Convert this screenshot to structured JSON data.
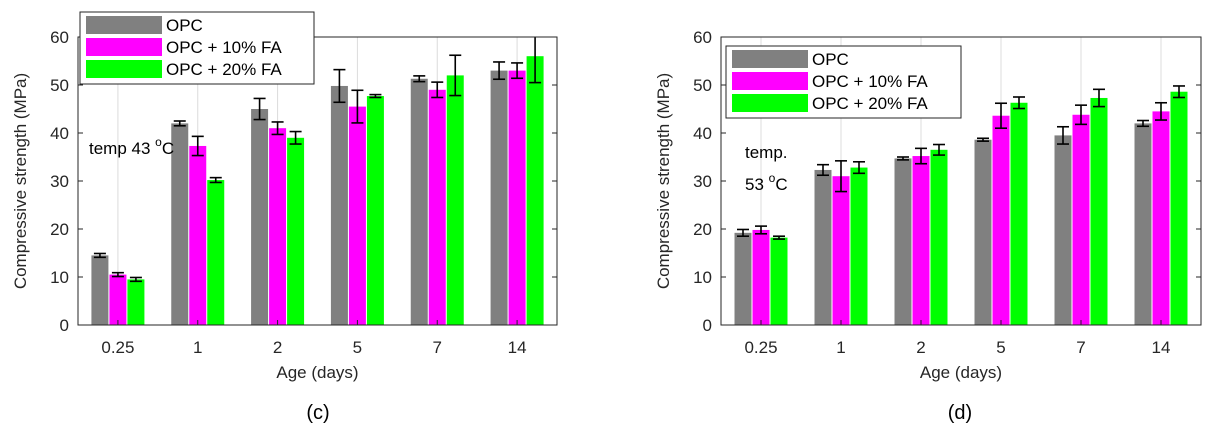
{
  "chart_data": [
    {
      "type": "bar",
      "panel_label": "(c)",
      "annotation": {
        "text": "temp 43 ",
        "sup": "o",
        "unit": "C"
      },
      "categories": [
        "0.25",
        "1",
        "2",
        "5",
        "7",
        "14"
      ],
      "xlabel": "Age (days)",
      "ylabel": "Compressive strength (MPa)",
      "ylim": [
        0,
        60
      ],
      "yticks": [
        0,
        10,
        20,
        30,
        40,
        50,
        60
      ],
      "grid": "vertical",
      "legend_position": "top-left",
      "series": [
        {
          "name": "OPC",
          "color": "#808080",
          "values": [
            14.5,
            42,
            45,
            49.8,
            51.3,
            53
          ],
          "errors": [
            0.4,
            0.5,
            2.2,
            3.4,
            0.6,
            1.8
          ]
        },
        {
          "name": "OPC + 10% FA",
          "color": "#ff00ff",
          "values": [
            10.5,
            37.3,
            41,
            45.5,
            49,
            53
          ],
          "errors": [
            0.4,
            2.0,
            1.3,
            3.4,
            1.6,
            1.6
          ]
        },
        {
          "name": "OPC + 20% FA",
          "color": "#00ff00",
          "values": [
            9.5,
            30.2,
            39,
            47.7,
            52,
            56
          ],
          "errors": [
            0.4,
            0.5,
            1.3,
            0.3,
            4.2,
            5.5
          ]
        }
      ]
    },
    {
      "type": "bar",
      "panel_label": "(d)",
      "annotation": {
        "text": "temp.",
        "sup": "o",
        "unit": "C",
        "line2": "53 "
      },
      "categories": [
        "0.25",
        "1",
        "2",
        "5",
        "7",
        "14"
      ],
      "xlabel": "Age (days)",
      "ylabel": "Compressive strength (MPa)",
      "ylim": [
        0,
        60
      ],
      "yticks": [
        0,
        10,
        20,
        30,
        40,
        50,
        60
      ],
      "grid": "vertical",
      "legend_position": "top-left",
      "series": [
        {
          "name": "OPC",
          "color": "#808080",
          "values": [
            19.2,
            32.3,
            34.7,
            38.6,
            39.5,
            42
          ],
          "errors": [
            0.7,
            1.1,
            0.3,
            0.3,
            1.8,
            0.6
          ]
        },
        {
          "name": "OPC + 10% FA",
          "color": "#ff00ff",
          "values": [
            19.8,
            31,
            35.2,
            43.6,
            43.8,
            44.5
          ],
          "errors": [
            0.8,
            3.2,
            1.6,
            2.6,
            2.0,
            1.8
          ]
        },
        {
          "name": "OPC + 20% FA",
          "color": "#00ff00",
          "values": [
            18.2,
            32.8,
            36.5,
            46.3,
            47.3,
            48.6
          ],
          "errors": [
            0.3,
            1.2,
            1.1,
            1.2,
            1.8,
            1.2
          ]
        }
      ]
    }
  ]
}
